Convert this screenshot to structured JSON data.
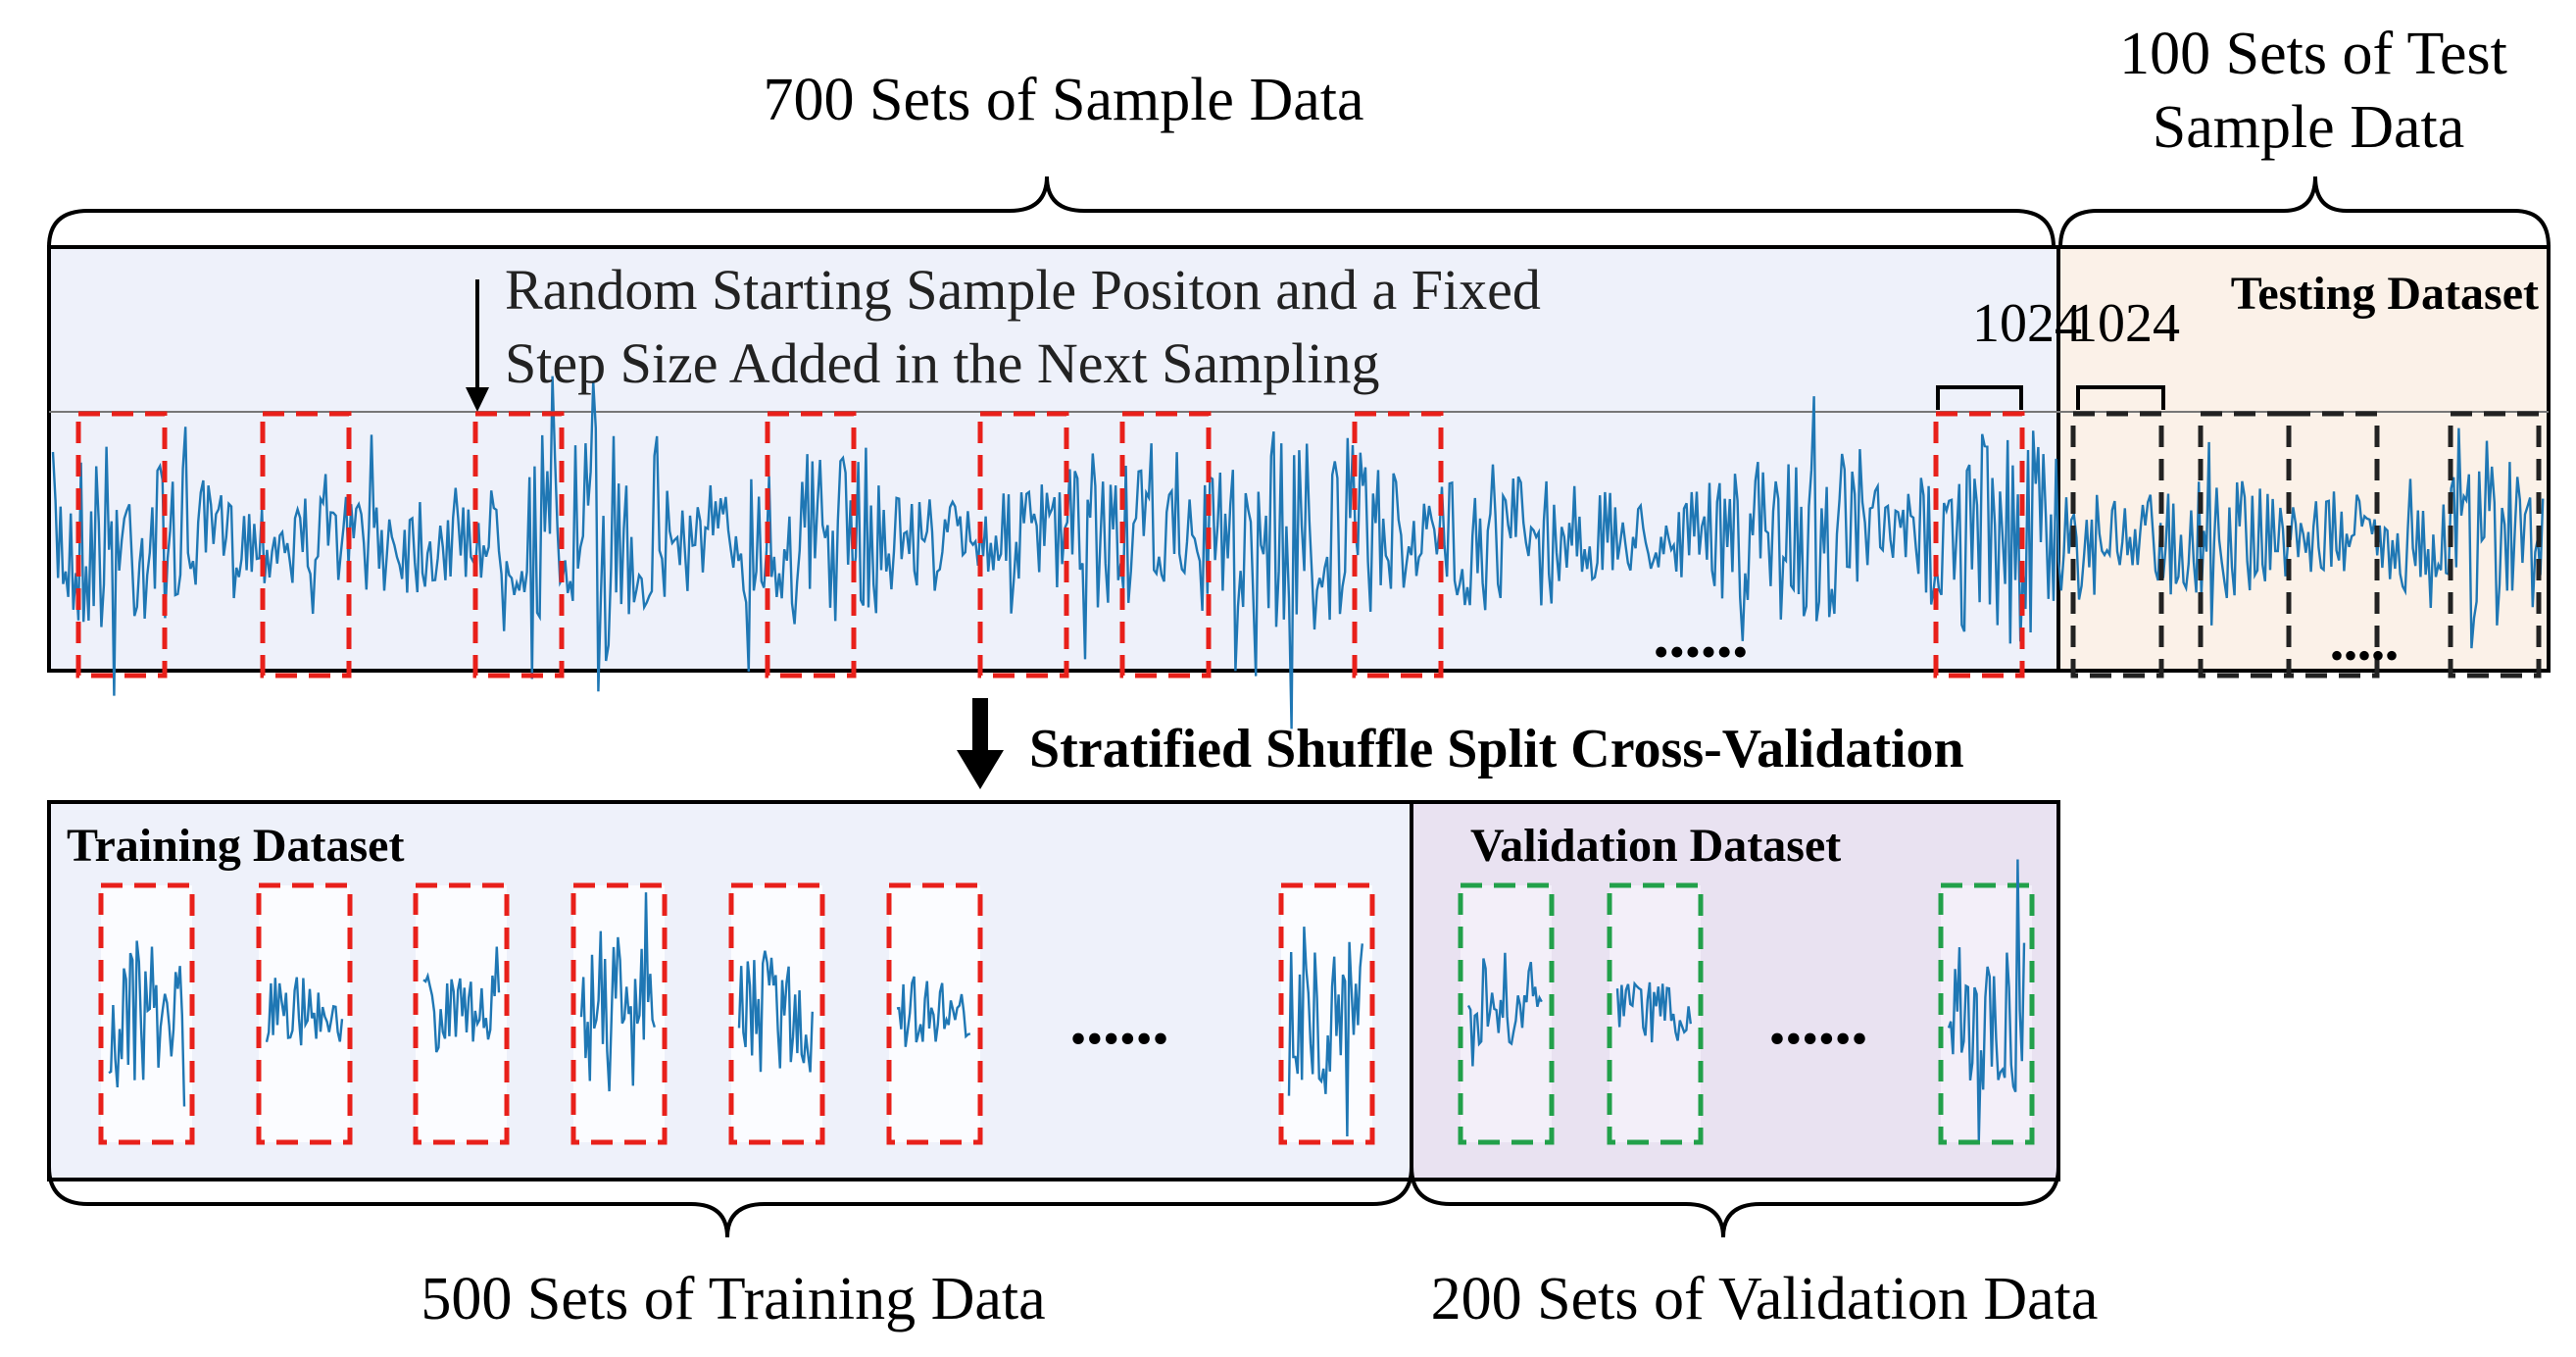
{
  "braces": {
    "sample_data": "700 Sets of Sample Data",
    "test_line1": "100 Sets of Test",
    "test_line2": "Sample Data",
    "training_data": "500 Sets of Training Data",
    "validation_data": "200 Sets of Validation Data"
  },
  "signal_panel": {
    "annotation_line1": "Random Starting Sample Positon and a Fixed",
    "annotation_line2": "Step Size Added in the Next Sampling",
    "window_length_train": "1024",
    "window_length_test": "1024",
    "testing_label": "Testing Dataset",
    "ellipsis_main": "••••••",
    "ellipsis_test": "•••••"
  },
  "split": {
    "label": "Stratified Shuffle Split Cross-Validation"
  },
  "training_panel": {
    "label": "Training Dataset",
    "ellipsis": "••••••"
  },
  "validation_panel": {
    "label": "Validation Dataset",
    "ellipsis": "••••••"
  },
  "colors": {
    "signal": "#1f77b4",
    "sample_window": "#e8201a",
    "test_window": "#222222",
    "validation_window": "#22a04a",
    "sample_bg": "#eef1fa",
    "test_bg": "#fbf1e8",
    "training_bg": "#eef1fa",
    "validation_bg": "#e9e2f1"
  }
}
